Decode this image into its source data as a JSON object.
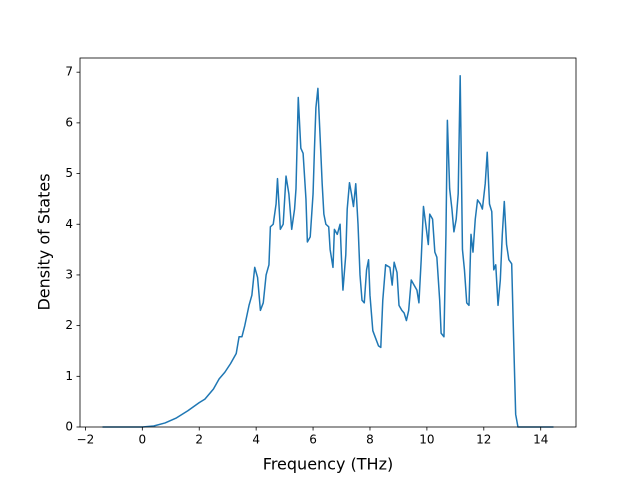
{
  "chart_data": {
    "type": "line",
    "x_label": "Frequency (THz)",
    "y_label": "Density of States",
    "xlim": [
      -2.19,
      15.24
    ],
    "ylim": [
      0,
      7.28
    ],
    "xticks": [
      {
        "value": -2,
        "label": "−2"
      },
      0,
      2,
      4,
      6,
      8,
      10,
      12,
      14
    ],
    "yticks": [
      0,
      1,
      2,
      3,
      4,
      5,
      6,
      7
    ],
    "color": "#1f77b4",
    "x": [
      -1.4,
      0,
      0.4,
      0.8,
      1.2,
      1.6,
      2.0,
      2.2,
      2.5,
      2.7,
      2.9,
      3.1,
      3.3,
      3.4,
      3.5,
      3.6,
      3.75,
      3.85,
      3.95,
      4.05,
      4.15,
      4.25,
      4.35,
      4.45,
      4.5,
      4.6,
      4.7,
      4.75,
      4.85,
      4.95,
      5.05,
      5.15,
      5.25,
      5.35,
      5.4,
      5.48,
      5.57,
      5.65,
      5.75,
      5.8,
      5.9,
      6.0,
      6.05,
      6.1,
      6.17,
      6.25,
      6.32,
      6.38,
      6.45,
      6.55,
      6.6,
      6.7,
      6.75,
      6.85,
      6.95,
      7.0,
      7.05,
      7.15,
      7.2,
      7.28,
      7.35,
      7.42,
      7.5,
      7.58,
      7.65,
      7.72,
      7.8,
      7.88,
      7.95,
      8.0,
      8.1,
      8.2,
      8.3,
      8.38,
      8.45,
      8.55,
      8.7,
      8.78,
      8.85,
      8.95,
      9.02,
      9.12,
      9.2,
      9.28,
      9.36,
      9.45,
      9.55,
      9.65,
      9.72,
      9.8,
      9.88,
      9.96,
      10.05,
      10.1,
      10.2,
      10.28,
      10.35,
      10.45,
      10.5,
      10.6,
      10.67,
      10.72,
      10.8,
      10.88,
      10.95,
      11.03,
      11.1,
      11.17,
      11.25,
      11.32,
      11.4,
      11.48,
      11.55,
      11.62,
      11.7,
      11.78,
      11.88,
      11.95,
      12.05,
      12.12,
      12.2,
      12.28,
      12.35,
      12.42,
      12.5,
      12.58,
      12.65,
      12.72,
      12.8,
      12.88,
      12.98,
      13.05,
      13.12,
      13.2,
      14.45
    ],
    "values": [
      0,
      0,
      0.02,
      0.08,
      0.18,
      0.32,
      0.48,
      0.55,
      0.75,
      0.95,
      1.08,
      1.25,
      1.45,
      1.78,
      1.78,
      2.0,
      2.4,
      2.6,
      3.15,
      2.95,
      2.3,
      2.45,
      3.0,
      3.2,
      3.95,
      4.0,
      4.4,
      4.9,
      3.9,
      4.0,
      4.95,
      4.6,
      3.9,
      4.3,
      4.7,
      6.5,
      5.5,
      5.4,
      4.5,
      3.65,
      3.75,
      4.6,
      5.5,
      6.3,
      6.68,
      5.7,
      4.8,
      4.2,
      4.0,
      3.95,
      3.5,
      3.15,
      3.9,
      3.8,
      4.0,
      3.3,
      2.7,
      3.4,
      4.3,
      4.82,
      4.6,
      4.35,
      4.8,
      4.0,
      3.0,
      2.5,
      2.45,
      3.1,
      3.3,
      2.6,
      1.9,
      1.75,
      1.6,
      1.57,
      2.5,
      3.2,
      3.15,
      2.8,
      3.25,
      3.05,
      2.4,
      2.3,
      2.25,
      2.1,
      2.3,
      2.9,
      2.8,
      2.7,
      2.45,
      3.3,
      4.35,
      4.0,
      3.6,
      4.2,
      4.1,
      3.45,
      3.35,
      2.5,
      1.85,
      1.78,
      3.8,
      6.05,
      4.7,
      4.3,
      3.85,
      4.1,
      4.6,
      6.93,
      3.5,
      3.1,
      2.45,
      2.4,
      3.8,
      3.45,
      4.1,
      4.48,
      4.4,
      4.3,
      4.8,
      5.42,
      4.4,
      4.25,
      3.1,
      3.2,
      2.4,
      2.9,
      3.8,
      4.45,
      3.6,
      3.3,
      3.22,
      1.7,
      0.25,
      0,
      0
    ]
  }
}
